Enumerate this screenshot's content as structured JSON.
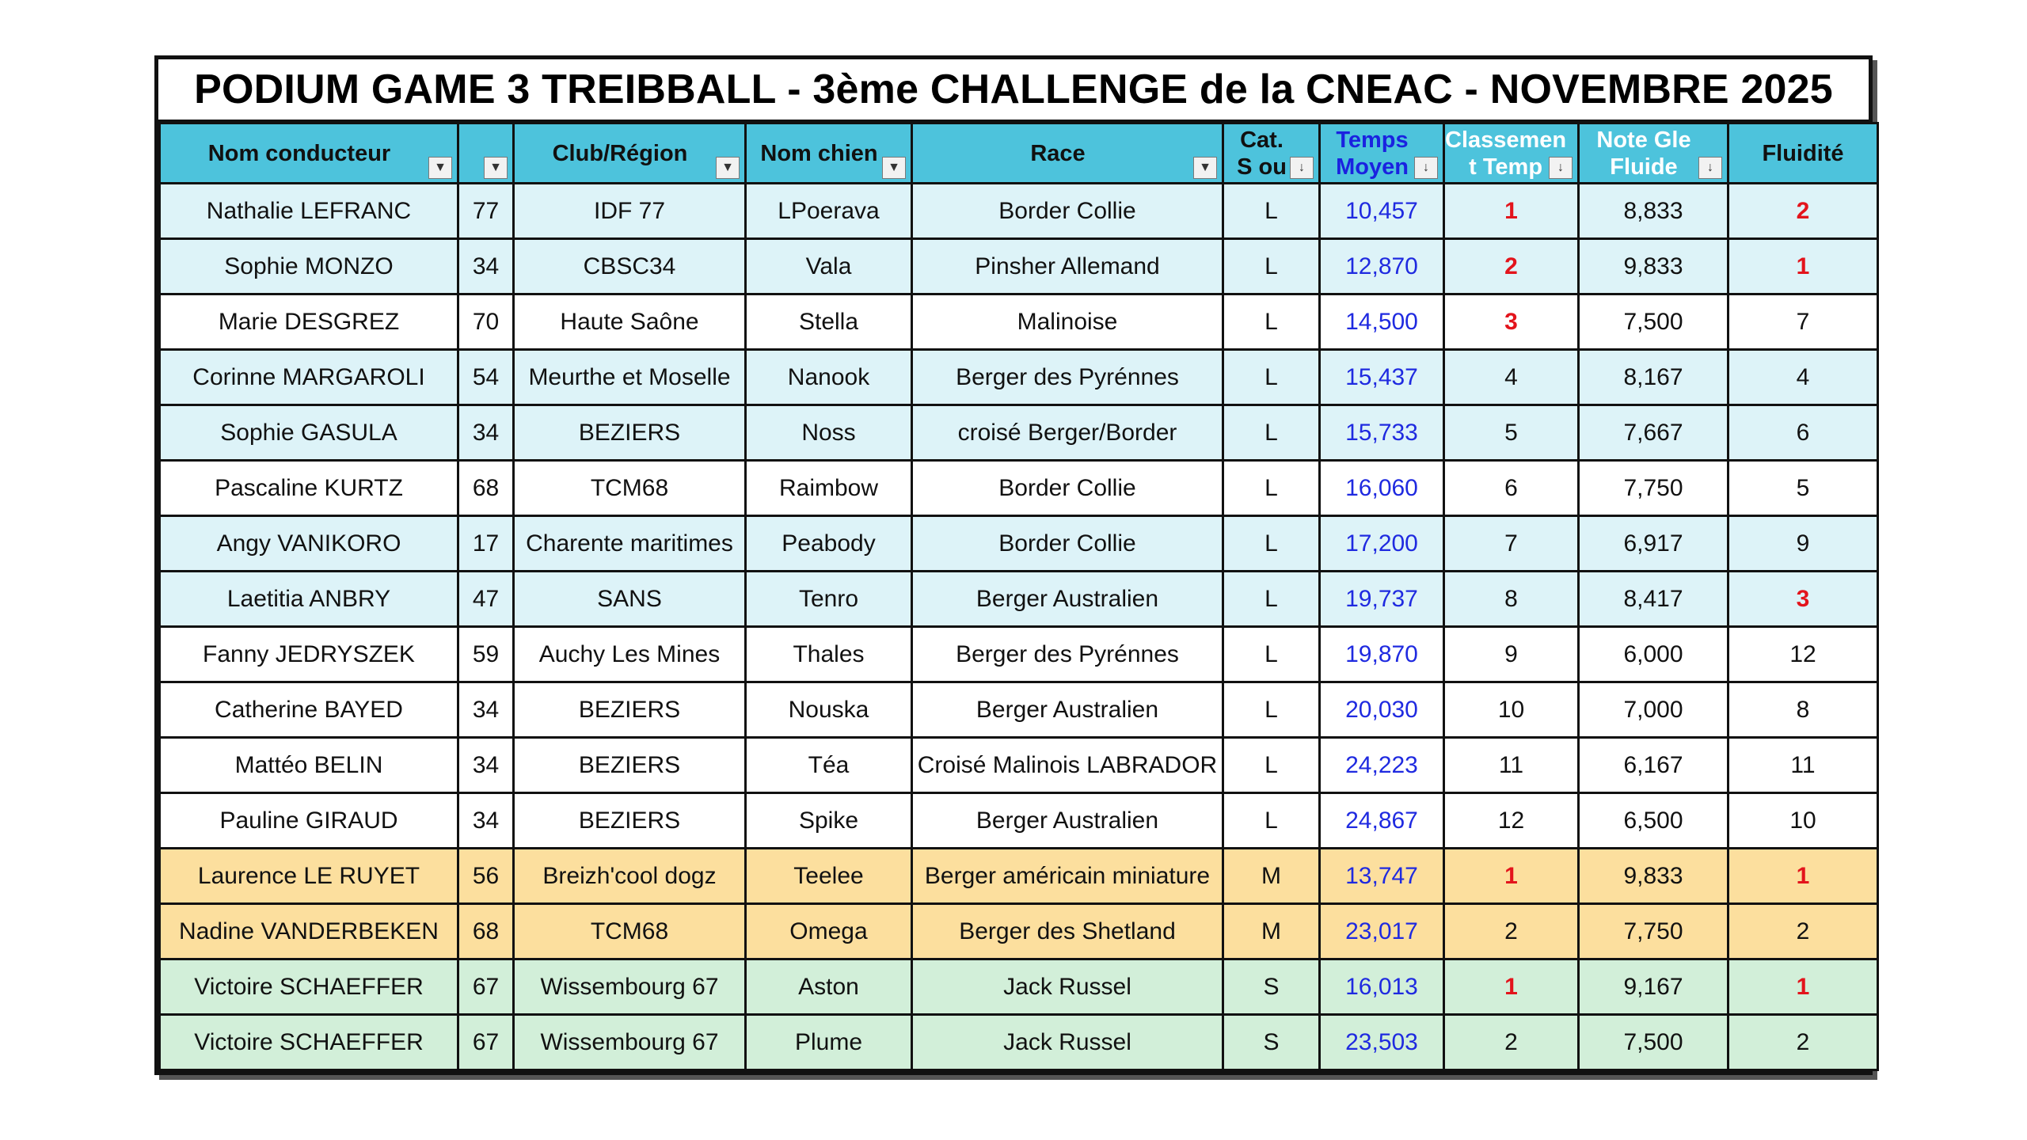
{
  "title": "PODIUM GAME 3 TREIBBALL - 3ème CHALLENGE de la CNEAC - NOVEMBRE 2025",
  "colors": {
    "header_bg": "#4dc3dc",
    "row_l": "#ddf3f8",
    "row_l_alt": "#ffffff",
    "row_m": "#fcdf9e",
    "row_s": "#d2efd9",
    "time_text": "#1f2ae0",
    "podium_text": "#e3141c"
  },
  "headers": {
    "nom_conducteur": "Nom conducteur",
    "dept": "",
    "club": "Club/Région",
    "nom_chien": "Nom chien",
    "race": "Race",
    "cat_line1": "Cat.",
    "cat_line2": "S ou",
    "temps_line1": "Temps",
    "temps_line2": "Moyen",
    "classement_line1": "Classemen",
    "classement_line2": "t Temp",
    "note_line1": "Note Gle",
    "note_line2": "Fluide",
    "fluidite": "Fluidité"
  },
  "icons": {
    "filter": "dropdown-filter-icon",
    "sort": "sort-filter-icon"
  },
  "rows": [
    {
      "nom": "Nathalie LEFRANC",
      "dept": "77",
      "club": "IDF 77",
      "chien": "LPoerava",
      "race": "Border Collie",
      "cat": "L",
      "temps": "10,457",
      "classement": "1",
      "note": "8,833",
      "fluidite": "2"
    },
    {
      "nom": "Sophie MONZO",
      "dept": "34",
      "club": "CBSC34",
      "chien": "Vala",
      "race": "Pinsher Allemand",
      "cat": "L",
      "temps": "12,870",
      "classement": "2",
      "note": "9,833",
      "fluidite": "1"
    },
    {
      "nom": "Marie DESGREZ",
      "dept": "70",
      "club": "Haute Saône",
      "chien": "Stella",
      "race": "Malinoise",
      "cat": "L",
      "temps": "14,500",
      "classement": "3",
      "note": "7,500",
      "fluidite": "7"
    },
    {
      "nom": "Corinne MARGAROLI",
      "dept": "54",
      "club": "Meurthe et Moselle",
      "chien": "Nanook",
      "race": "Berger des Pyrénnes",
      "cat": "L",
      "temps": "15,437",
      "classement": "4",
      "note": "8,167",
      "fluidite": "4"
    },
    {
      "nom": "Sophie GASULA",
      "dept": "34",
      "club": "BEZIERS",
      "chien": "Noss",
      "race": "croisé Berger/Border",
      "cat": "L",
      "temps": "15,733",
      "classement": "5",
      "note": "7,667",
      "fluidite": "6"
    },
    {
      "nom": "Pascaline KURTZ",
      "dept": "68",
      "club": "TCM68",
      "chien": "Raimbow",
      "race": "Border Collie",
      "cat": "L",
      "temps": "16,060",
      "classement": "6",
      "note": "7,750",
      "fluidite": "5"
    },
    {
      "nom": "Angy VANIKORO",
      "dept": "17",
      "club": "Charente maritimes",
      "chien": "Peabody",
      "race": "Border Collie",
      "cat": "L",
      "temps": "17,200",
      "classement": "7",
      "note": "6,917",
      "fluidite": "9"
    },
    {
      "nom": "Laetitia ANBRY",
      "dept": "47",
      "club": "SANS",
      "chien": "Tenro",
      "race": "Berger Australien",
      "cat": "L",
      "temps": "19,737",
      "classement": "8",
      "note": "8,417",
      "fluidite": "3"
    },
    {
      "nom": "Fanny JEDRYSZEK",
      "dept": "59",
      "club": "Auchy Les Mines",
      "chien": "Thales",
      "race": "Berger des Pyrénnes",
      "cat": "L",
      "temps": "19,870",
      "classement": "9",
      "note": "6,000",
      "fluidite": "12"
    },
    {
      "nom": "Catherine BAYED",
      "dept": "34",
      "club": "BEZIERS",
      "chien": "Nouska",
      "race": "Berger Australien",
      "cat": "L",
      "temps": "20,030",
      "classement": "10",
      "note": "7,000",
      "fluidite": "8"
    },
    {
      "nom": "Mattéo BELIN",
      "dept": "34",
      "club": "BEZIERS",
      "chien": "Téa",
      "race": "Croisé Malinois LABRADOR",
      "cat": "L",
      "temps": "24,223",
      "classement": "11",
      "note": "6,167",
      "fluidite": "11"
    },
    {
      "nom": "Pauline GIRAUD",
      "dept": "34",
      "club": "BEZIERS",
      "chien": "Spike",
      "race": "Berger Australien",
      "cat": "L",
      "temps": "24,867",
      "classement": "12",
      "note": "6,500",
      "fluidite": "10"
    },
    {
      "nom": "Laurence LE RUYET",
      "dept": "56",
      "club": "Breizh'cool dogz",
      "chien": "Teelee",
      "race": "Berger américain miniature",
      "cat": "M",
      "temps": "13,747",
      "classement": "1",
      "note": "9,833",
      "fluidite": "1"
    },
    {
      "nom": "Nadine VANDERBEKEN",
      "dept": "68",
      "club": "TCM68",
      "chien": "Omega",
      "race": "Berger des Shetland",
      "cat": "M",
      "temps": "23,017",
      "classement": "2",
      "note": "7,750",
      "fluidite": "2"
    },
    {
      "nom": "Victoire SCHAEFFER",
      "dept": "67",
      "club": "Wissembourg 67",
      "chien": "Aston",
      "race": "Jack Russel",
      "cat": "S",
      "temps": "16,013",
      "classement": "1",
      "note": "9,167",
      "fluidite": "1"
    },
    {
      "nom": "Victoire SCHAEFFER",
      "dept": "67",
      "club": "Wissembourg 67",
      "chien": "Plume",
      "race": "Jack Russel",
      "cat": "S",
      "temps": "23,503",
      "classement": "2",
      "note": "7,500",
      "fluidite": "2"
    }
  ]
}
